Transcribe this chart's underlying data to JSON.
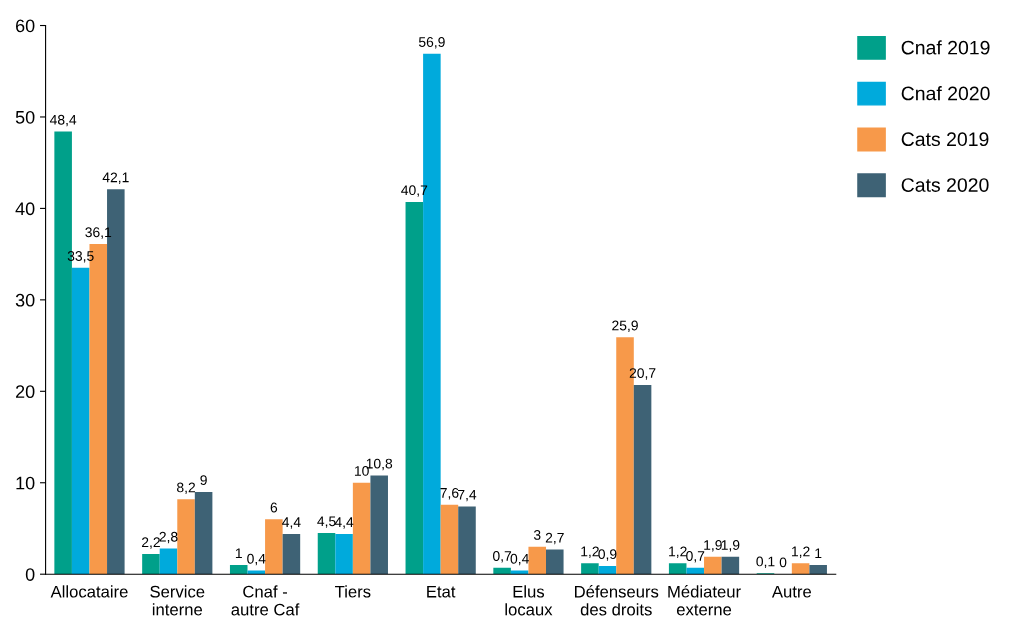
{
  "chart_data": {
    "type": "bar",
    "categories": [
      "Allocataire",
      "Service\ninterne",
      "Cnaf -\nautre Caf",
      "Tiers",
      "Etat",
      "Elus\nlocaux",
      "Défenseurs\ndes droits",
      "Médiateur\nexterne",
      "Autre"
    ],
    "series": [
      {
        "name": "Cnaf 2019",
        "color": "#00a08a",
        "values": [
          48.4,
          2.2,
          1,
          4.5,
          40.7,
          0.7,
          1.2,
          1.2,
          0.1
        ],
        "value_labels": [
          "48,4",
          "2,2",
          "1",
          "4,5",
          "40,7",
          "0,7",
          "1,2",
          "1,2",
          "0,1"
        ]
      },
      {
        "name": "Cnaf 2020",
        "color": "#00aadc",
        "values": [
          33.5,
          2.8,
          0.4,
          4.4,
          56.9,
          0.4,
          0.9,
          0.7,
          0
        ],
        "value_labels": [
          "33,5",
          "2,8",
          "0,4",
          "4,4",
          "56,9",
          "0,4",
          "0,9",
          "0,7",
          "0"
        ]
      },
      {
        "name": "Cats 2019",
        "color": "#f7994a",
        "values": [
          36.1,
          8.2,
          6,
          10,
          7.6,
          3,
          25.9,
          1.9,
          1.2
        ],
        "value_labels": [
          "36,1",
          "8,2",
          "6",
          "10",
          "7,6",
          "3",
          "25,9",
          "1,9",
          "1,2"
        ]
      },
      {
        "name": "Cats 2020",
        "color": "#3e6275",
        "values": [
          42.1,
          9,
          4.4,
          10.8,
          7.4,
          2.7,
          20.7,
          1.9,
          1
        ],
        "value_labels": [
          "42,1",
          "9",
          "4,4",
          "10,8",
          "7,4",
          "2,7",
          "20,7",
          "1,9",
          "1"
        ]
      }
    ],
    "ylim": [
      0,
      60
    ],
    "yticks": [
      0,
      10,
      20,
      30,
      40,
      50,
      60
    ],
    "grid": false,
    "legend": "top right"
  }
}
